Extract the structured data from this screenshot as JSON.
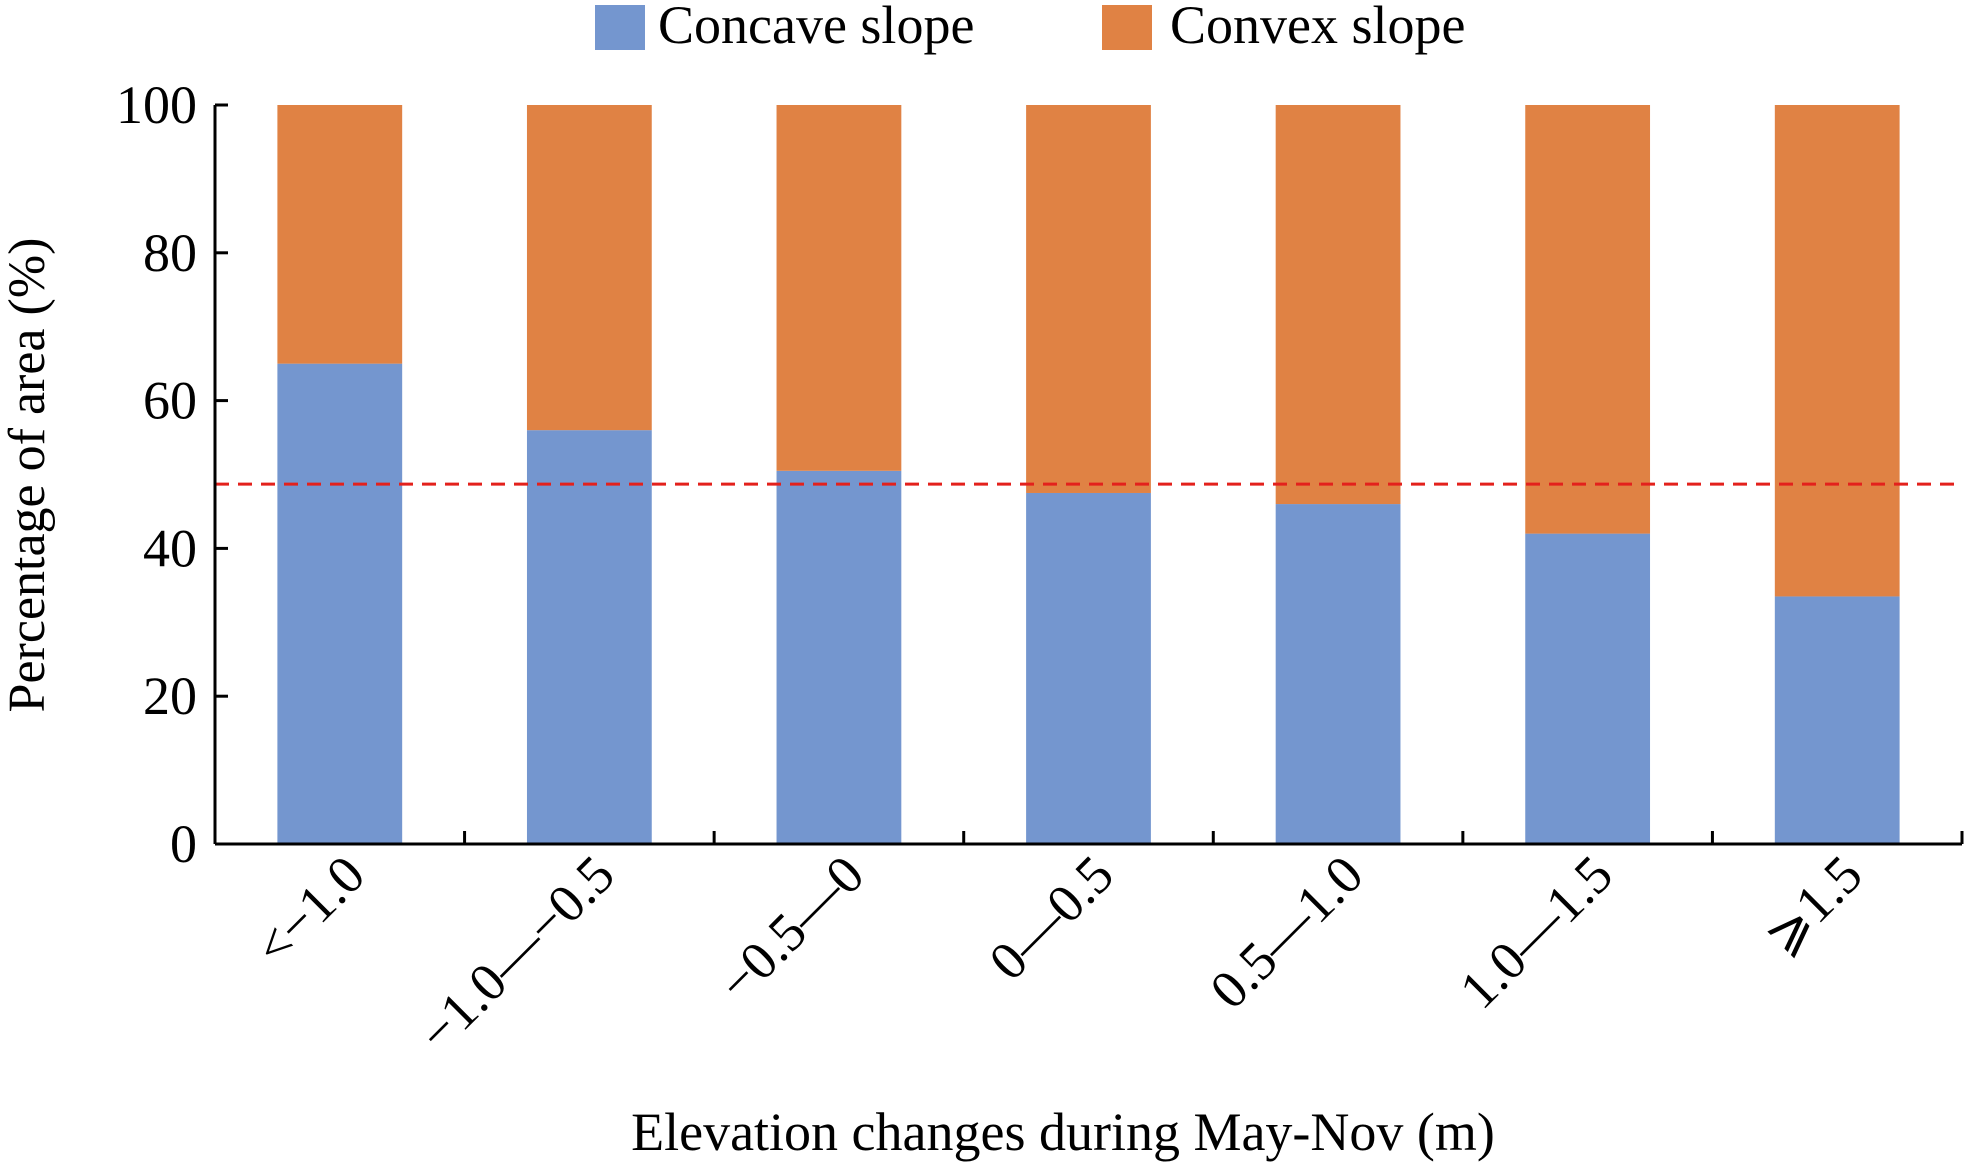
{
  "chart_data": {
    "type": "bar",
    "stacked": true,
    "title": "",
    "xlabel": "Elevation changes during May-Nov (m)",
    "ylabel": "Percentage of area (%)",
    "ylim": [
      0,
      100
    ],
    "yticks": [
      0,
      20,
      40,
      60,
      80,
      100
    ],
    "grid": false,
    "legend_position": "top-center",
    "categories": [
      "<−1.0",
      "−1.0—−0.5",
      "−0.5—0",
      "0—0.5",
      "0.5—1.0",
      "1.0—1.5",
      "⩾1.5"
    ],
    "series": [
      {
        "name": "Concave slope",
        "color": "#7496cf",
        "values": [
          65,
          56,
          50.5,
          47.5,
          46,
          42,
          33.5
        ]
      },
      {
        "name": "Convex slope",
        "color": "#e08244",
        "values": [
          35,
          44,
          49.5,
          52.5,
          54,
          58,
          66.5
        ]
      }
    ],
    "reference_line": {
      "y": 48.7,
      "color": "#e3211c",
      "style": "dashed"
    }
  }
}
